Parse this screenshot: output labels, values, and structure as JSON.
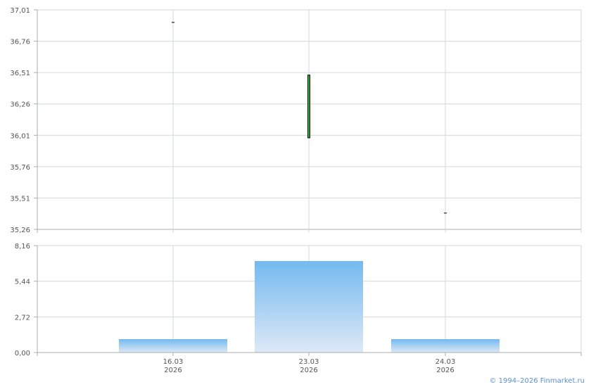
{
  "chart_data": [
    {
      "type": "candlestick",
      "categories": [
        "16.03\n2026",
        "23.03\n2026",
        "24.03\n2026"
      ],
      "ohlc": [
        {
          "open": 36.91,
          "high": 36.91,
          "low": 36.91,
          "close": 36.91
        },
        {
          "open": 35.99,
          "high": 36.49,
          "low": 35.99,
          "close": 36.49
        },
        {
          "open": 35.39,
          "high": 35.39,
          "low": 35.39,
          "close": 35.39
        }
      ],
      "ylim": [
        35.26,
        37.01
      ],
      "yticks": [
        "37,01",
        "36,76",
        "36,51",
        "36,26",
        "36,01",
        "35,76",
        "35,51",
        "35,26"
      ],
      "grid": true,
      "colors": {
        "up": "#22bb22",
        "outline": "#000000",
        "grid": "#d3d7db"
      }
    },
    {
      "type": "bar",
      "categories": [
        "16.03\n2026",
        "23.03\n2026",
        "24.03\n2026"
      ],
      "xtick_labels": [
        [
          "16.03",
          "2026"
        ],
        [
          "23.03",
          "2026"
        ],
        [
          "24.03",
          "2026"
        ]
      ],
      "values": [
        1.02,
        6.98,
        1.02
      ],
      "ylim": [
        0,
        8.16
      ],
      "yticks": [
        "8,16",
        "5,44",
        "2,72",
        "0,00"
      ],
      "grid": true,
      "colors": {
        "bar_top": "#74b9ef",
        "bar_bottom": "#dde9f6"
      }
    }
  ],
  "footer": {
    "copyright": "© 1994–2026 Finmarket.ru"
  }
}
